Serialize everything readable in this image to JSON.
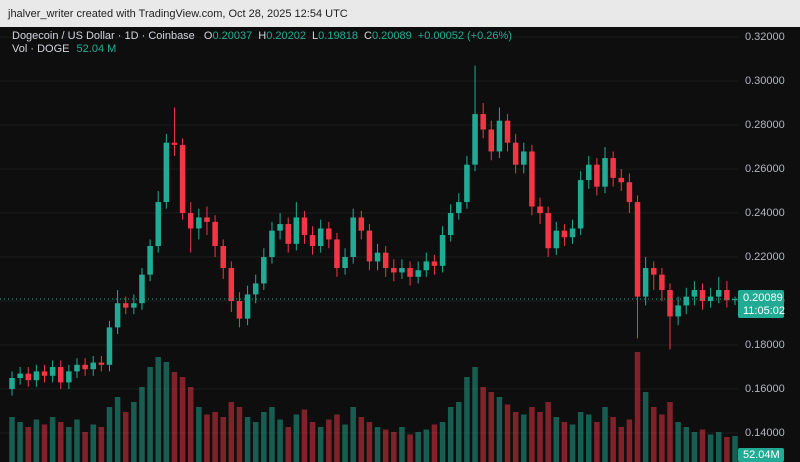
{
  "header": {
    "attribution": "jhalver_writer created with TradingView.com, Oct 28, 2025 12:54 UTC"
  },
  "chart_data": {
    "type": "candlestick",
    "symbol": "Dogecoin / US Dollar · 1D · Coinbase",
    "legend_labels": [
      "O",
      "H",
      "L",
      "C"
    ],
    "change": "+0.00052 (+0.26%)",
    "volume_label": "Vol · DOGE",
    "volume_value": "52.04 M",
    "volume_tag": "52.04M",
    "countdown": "11:05:02",
    "up_color": "#22ab94",
    "down_color": "#f23645",
    "ylim": [
      0.1268,
      0.3246
    ],
    "yticks": [
      {
        "value": 0.32,
        "label": "0.32000"
      },
      {
        "value": 0.3,
        "label": "0.30000"
      },
      {
        "value": 0.28,
        "label": "0.28000"
      },
      {
        "value": 0.26,
        "label": "0.26000"
      },
      {
        "value": 0.24,
        "label": "0.24000"
      },
      {
        "value": 0.22,
        "label": "0.22000"
      },
      {
        "value": 0.2,
        "label": "0.20000"
      },
      {
        "value": 0.18,
        "label": "0.18000"
      },
      {
        "value": 0.16,
        "label": "0.16000"
      },
      {
        "value": 0.14,
        "label": "0.14000"
      }
    ],
    "open": [
      0.16,
      0.165,
      0.167,
      0.164,
      0.168,
      0.166,
      0.17,
      0.163,
      0.168,
      0.171,
      0.169,
      0.172,
      0.171,
      0.188,
      0.199,
      0.197,
      0.199,
      0.212,
      0.225,
      0.245,
      0.272,
      0.271,
      0.24,
      0.233,
      0.238,
      0.236,
      0.225,
      0.215,
      0.2,
      0.192,
      0.203,
      0.208,
      0.22,
      0.232,
      0.235,
      0.226,
      0.238,
      0.23,
      0.225,
      0.233,
      0.228,
      0.215,
      0.22,
      0.238,
      0.232,
      0.218,
      0.222,
      0.215,
      0.213,
      0.215,
      0.211,
      0.214,
      0.218,
      0.216,
      0.23,
      0.24,
      0.245,
      0.262,
      0.285,
      0.278,
      0.268,
      0.282,
      0.272,
      0.262,
      0.268,
      0.243,
      0.24,
      0.224,
      0.232,
      0.229,
      0.233,
      0.255,
      0.262,
      0.252,
      0.265,
      0.256,
      0.254,
      0.245,
      0.202,
      0.215,
      0.212,
      0.205,
      0.193,
      0.198,
      0.202,
      0.205,
      0.2,
      0.202,
      0.205,
      0.20037
    ],
    "high": [
      0.168,
      0.17,
      0.17,
      0.171,
      0.171,
      0.173,
      0.173,
      0.171,
      0.174,
      0.174,
      0.175,
      0.175,
      0.191,
      0.205,
      0.202,
      0.203,
      0.215,
      0.228,
      0.25,
      0.276,
      0.288,
      0.274,
      0.245,
      0.242,
      0.243,
      0.239,
      0.228,
      0.218,
      0.204,
      0.207,
      0.212,
      0.224,
      0.236,
      0.24,
      0.238,
      0.245,
      0.241,
      0.234,
      0.237,
      0.236,
      0.231,
      0.224,
      0.242,
      0.241,
      0.235,
      0.226,
      0.225,
      0.219,
      0.219,
      0.218,
      0.218,
      0.222,
      0.221,
      0.234,
      0.244,
      0.249,
      0.266,
      0.307,
      0.29,
      0.282,
      0.288,
      0.285,
      0.276,
      0.272,
      0.271,
      0.247,
      0.243,
      0.236,
      0.235,
      0.237,
      0.259,
      0.266,
      0.265,
      0.27,
      0.268,
      0.26,
      0.258,
      0.248,
      0.22,
      0.218,
      0.215,
      0.208,
      0.202,
      0.206,
      0.209,
      0.208,
      0.206,
      0.211,
      0.209,
      0.20202
    ],
    "low": [
      0.157,
      0.162,
      0.161,
      0.161,
      0.163,
      0.163,
      0.16,
      0.16,
      0.165,
      0.166,
      0.166,
      0.168,
      0.168,
      0.185,
      0.194,
      0.194,
      0.196,
      0.209,
      0.222,
      0.242,
      0.266,
      0.237,
      0.222,
      0.228,
      0.23,
      0.22,
      0.21,
      0.195,
      0.188,
      0.189,
      0.199,
      0.205,
      0.217,
      0.228,
      0.222,
      0.223,
      0.226,
      0.221,
      0.222,
      0.224,
      0.211,
      0.212,
      0.217,
      0.228,
      0.214,
      0.214,
      0.211,
      0.209,
      0.21,
      0.207,
      0.208,
      0.211,
      0.212,
      0.213,
      0.227,
      0.237,
      0.242,
      0.259,
      0.274,
      0.264,
      0.265,
      0.268,
      0.258,
      0.258,
      0.239,
      0.235,
      0.22,
      0.221,
      0.225,
      0.226,
      0.23,
      0.251,
      0.248,
      0.249,
      0.252,
      0.25,
      0.24,
      0.183,
      0.198,
      0.205,
      0.2,
      0.178,
      0.189,
      0.194,
      0.198,
      0.196,
      0.197,
      0.199,
      0.197,
      0.19818
    ],
    "close": [
      0.165,
      0.167,
      0.164,
      0.168,
      0.166,
      0.17,
      0.163,
      0.168,
      0.171,
      0.169,
      0.172,
      0.171,
      0.188,
      0.199,
      0.197,
      0.199,
      0.212,
      0.225,
      0.245,
      0.272,
      0.271,
      0.24,
      0.233,
      0.238,
      0.236,
      0.225,
      0.215,
      0.2,
      0.192,
      0.203,
      0.208,
      0.22,
      0.232,
      0.235,
      0.226,
      0.238,
      0.23,
      0.225,
      0.233,
      0.228,
      0.215,
      0.22,
      0.238,
      0.232,
      0.218,
      0.222,
      0.215,
      0.213,
      0.215,
      0.211,
      0.214,
      0.218,
      0.216,
      0.23,
      0.24,
      0.245,
      0.262,
      0.285,
      0.278,
      0.268,
      0.282,
      0.272,
      0.262,
      0.268,
      0.243,
      0.24,
      0.224,
      0.232,
      0.229,
      0.233,
      0.255,
      0.262,
      0.252,
      0.265,
      0.256,
      0.254,
      0.245,
      0.202,
      0.215,
      0.212,
      0.205,
      0.193,
      0.198,
      0.202,
      0.205,
      0.2,
      0.202,
      0.205,
      0.20037,
      0.20089
    ],
    "volume": [
      90,
      80,
      70,
      85,
      75,
      90,
      80,
      70,
      85,
      60,
      75,
      70,
      110,
      130,
      100,
      120,
      150,
      190,
      210,
      200,
      180,
      170,
      150,
      110,
      95,
      100,
      90,
      120,
      110,
      90,
      80,
      100,
      110,
      85,
      70,
      95,
      105,
      80,
      70,
      85,
      95,
      75,
      110,
      90,
      80,
      70,
      65,
      60,
      70,
      55,
      60,
      65,
      75,
      80,
      110,
      120,
      170,
      190,
      150,
      140,
      130,
      115,
      100,
      95,
      110,
      100,
      120,
      90,
      80,
      75,
      100,
      95,
      80,
      110,
      90,
      70,
      85,
      220,
      140,
      110,
      95,
      120,
      80,
      70,
      60,
      65,
      55,
      60,
      50,
      52.04
    ]
  }
}
